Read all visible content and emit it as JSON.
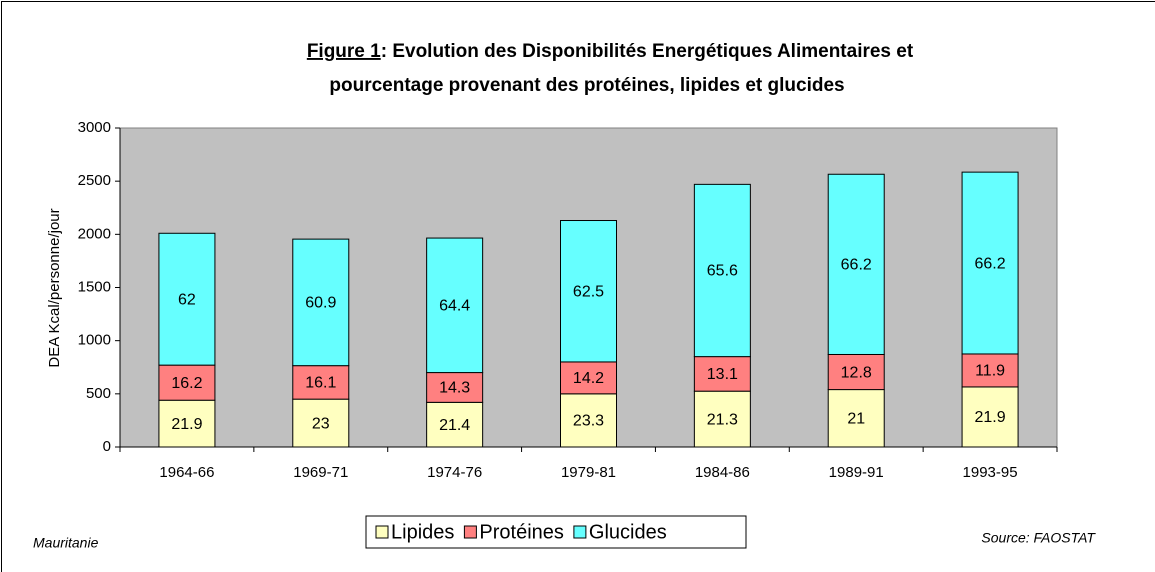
{
  "chart_data": {
    "type": "stacked_bar",
    "title_prefix": "Figure 1",
    "title": ":  Evolution des Disponibilités Energétiques Alimentaires et",
    "title_line2": "pourcentage provenant des protéines, lipides et glucides",
    "ylabel": "DEA Kcal/personne/jour",
    "note_left": "Mauritanie",
    "source": "Source: FAOSTAT",
    "categories": [
      "1964-66",
      "1969-71",
      "1974-76",
      "1979-81",
      "1984-86",
      "1989-91",
      "1993-95"
    ],
    "series": [
      {
        "name": "Lipides",
        "color": "#ffffc0",
        "values": [
          440,
          450,
          420,
          500,
          525,
          540,
          565
        ],
        "percentages": [
          21.9,
          23,
          21.4,
          23.3,
          21.3,
          21,
          21.9
        ]
      },
      {
        "name": "Protéines",
        "color": "#ff8080",
        "values": [
          330,
          315,
          280,
          300,
          325,
          330,
          310
        ],
        "percentages": [
          16.2,
          16.1,
          14.3,
          14.2,
          13.1,
          12.8,
          11.9
        ]
      },
      {
        "name": "Glucides",
        "color": "#66ffff",
        "values": [
          1240,
          1190,
          1265,
          1330,
          1620,
          1695,
          1710
        ],
        "percentages": [
          62,
          60.9,
          64.4,
          62.5,
          65.6,
          66.2,
          66.2
        ]
      }
    ],
    "ylim": [
      0,
      3000
    ],
    "yticks": [
      0,
      500,
      1000,
      1500,
      2000,
      2500,
      3000
    ],
    "plot_background": "#c0c0c0"
  }
}
